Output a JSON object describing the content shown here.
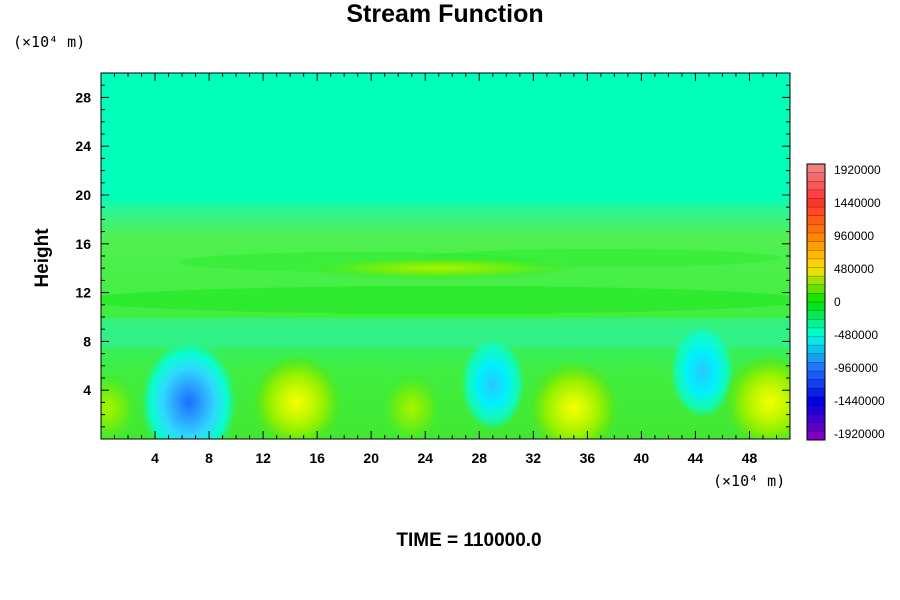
{
  "chart_data": {
    "type": "heatmap",
    "title": "Stream Function",
    "ylabel": "Height",
    "y_unit": "(×10⁴ m)",
    "x_unit": "(×10⁴ m)",
    "footer": "TIME = 110000.0",
    "xlim": [
      0,
      51
    ],
    "ylim": [
      0,
      30
    ],
    "x_ticks": [
      4,
      8,
      12,
      16,
      20,
      24,
      28,
      32,
      36,
      40,
      44,
      48
    ],
    "y_ticks": [
      4,
      8,
      12,
      16,
      20,
      24,
      28
    ],
    "colorbar": {
      "min": -1920000,
      "max": 1920000,
      "labels": [
        1920000,
        1440000,
        960000,
        480000,
        0,
        -480000,
        -960000,
        -1440000,
        -1920000
      ],
      "colors": [
        "#f08080",
        "#ff3030",
        "#ff8000",
        "#ffe000",
        "#00e000",
        "#00ffe0",
        "#2070ff",
        "#0000e0",
        "#8000c0"
      ]
    },
    "background_value": 200000,
    "features": [
      {
        "x": 6.5,
        "y": 3,
        "value": -900000
      },
      {
        "x": 14.5,
        "y": 3,
        "value": 560000
      },
      {
        "x": 23,
        "y": 2.5,
        "value": 340000
      },
      {
        "x": 29,
        "y": 4.5,
        "value": -400000
      },
      {
        "x": 35,
        "y": 2.5,
        "value": 760000
      },
      {
        "x": 44.5,
        "y": 5.5,
        "value": -450000
      },
      {
        "x": 49.5,
        "y": 3,
        "value": 620000
      },
      {
        "x": 0.5,
        "y": 2.5,
        "value": 450000
      },
      {
        "x": 25,
        "y": 14,
        "value": 450000
      }
    ]
  }
}
